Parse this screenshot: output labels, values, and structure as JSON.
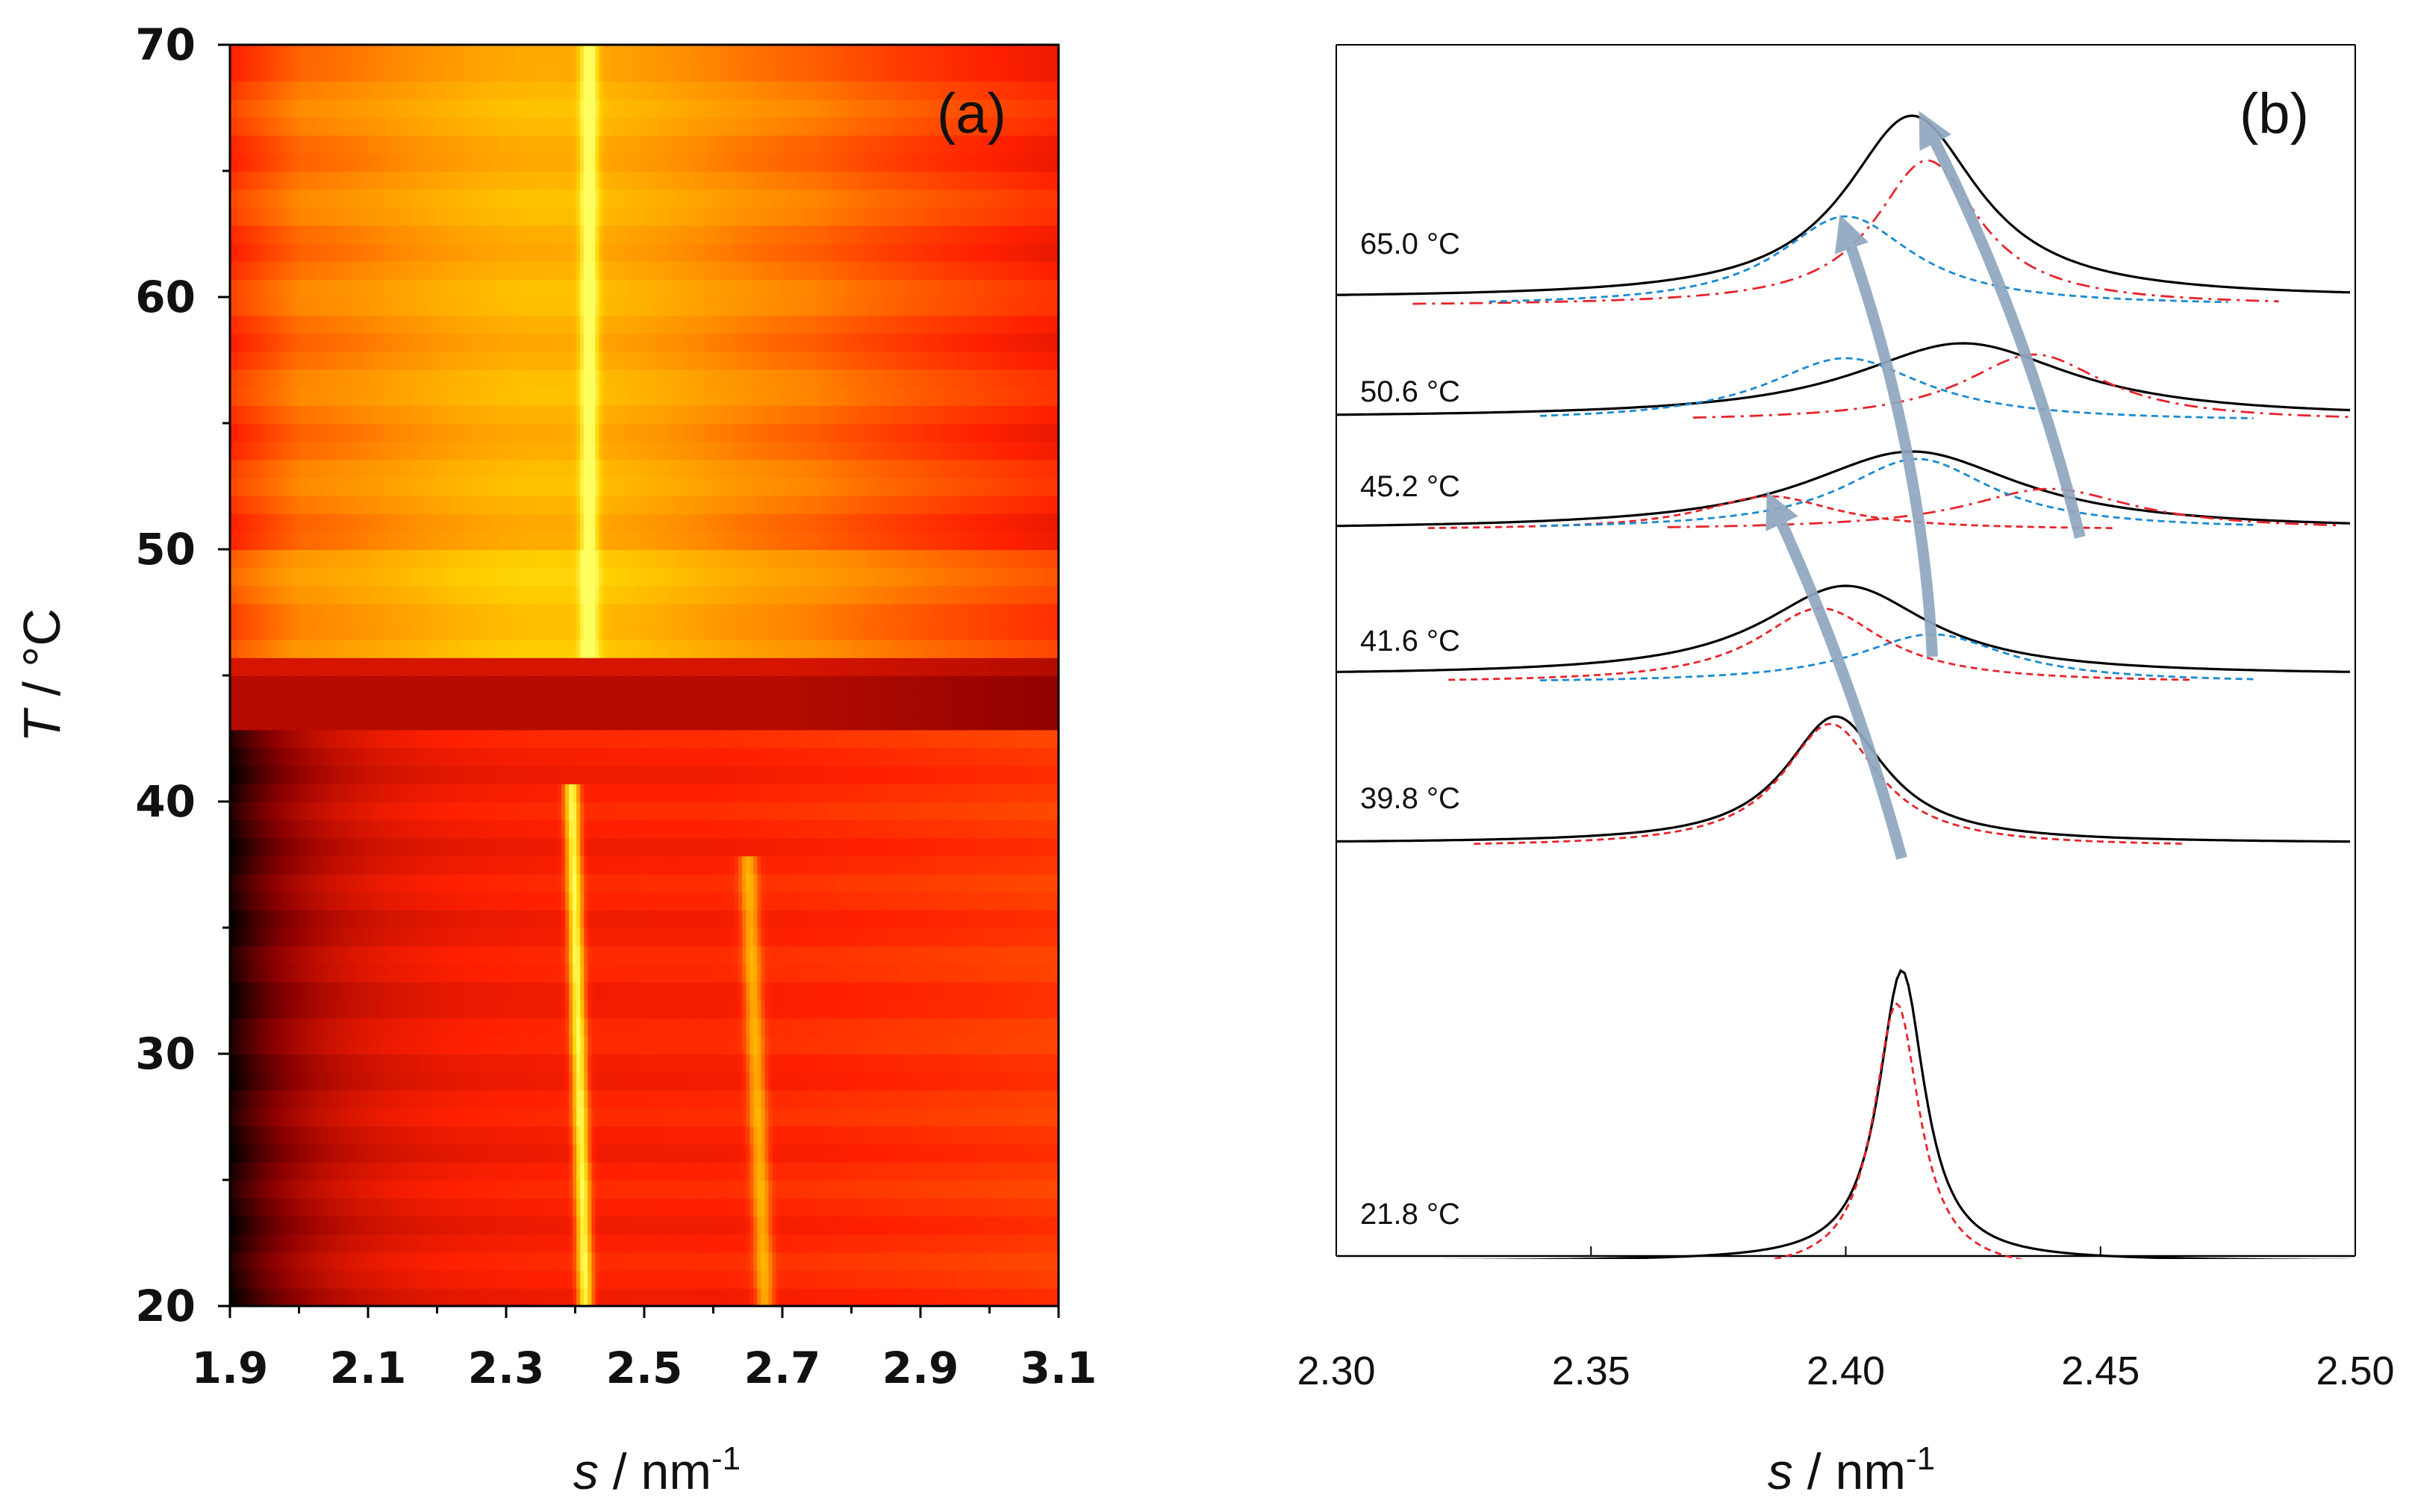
{
  "chart_data": [
    {
      "panel": "(a)",
      "type": "heatmap",
      "xlabel_var": "s",
      "xlabel_unit": " / nm",
      "xlabel_exp": "-1",
      "ylabel_var": "T",
      "ylabel_unit": " / °C",
      "xlim": [
        1.9,
        3.1
      ],
      "ylim": [
        20,
        70
      ],
      "x_tick_values": [
        1.9,
        2.1,
        2.3,
        2.5,
        2.7,
        2.9,
        3.1
      ],
      "x_tick_labels": [
        "1.9",
        "2.1",
        "2.3",
        "2.5",
        "2.7",
        "2.9",
        "3.1"
      ],
      "y_tick_values": [
        20,
        30,
        40,
        50,
        60,
        70
      ],
      "y_tick_labels": [
        "20",
        "30",
        "40",
        "50",
        "60",
        "70"
      ],
      "colormap": [
        "#000000",
        "#8b0000",
        "#ff2000",
        "#ff8c00",
        "#ffd000",
        "#ffff60"
      ],
      "transition_band_T": [
        43,
        46
      ],
      "high_T_peak": {
        "s": 2.42,
        "T_range": [
          46,
          70
        ]
      },
      "low_T_peaks": [
        {
          "s_at_20": 2.415,
          "s_at_top": 2.395,
          "T_range": [
            20,
            40.5
          ]
        },
        {
          "s_at_20": 2.675,
          "s_at_top": 2.65,
          "T_range": [
            20,
            38
          ]
        }
      ]
    },
    {
      "panel": "(b)",
      "type": "line",
      "xlabel_var": "s",
      "xlabel_unit": " / nm",
      "xlabel_exp": "-1",
      "xlim": [
        2.3,
        2.5
      ],
      "x_tick_values": [
        2.3,
        2.35,
        2.4,
        2.45,
        2.5
      ],
      "x_tick_labels": [
        "2.30",
        "2.35",
        "2.40",
        "2.45",
        "2.50"
      ],
      "series_colors": {
        "measured": "#000000",
        "red_fit": "#e8242b",
        "blue_fit": "#1a8ad0",
        "arrow": "#8fa7bf"
      },
      "temperatures": [
        {
          "label": "21.8 °C",
          "measured": {
            "base": 0.0,
            "height": 3.9,
            "center": 2.411,
            "width": 0.0055
          },
          "red": [
            {
              "center": 2.41,
              "width": 0.0055,
              "height": 3.6,
              "base": -0.15,
              "range": [
                2.34,
                2.48
              ],
              "style": "dashed"
            }
          ],
          "blue": []
        },
        {
          "label": "39.8 °C",
          "measured": {
            "base": 0.0,
            "height": 1.7,
            "center": 2.398,
            "width": 0.012
          },
          "red": [
            {
              "center": 2.397,
              "width": 0.0115,
              "height": 1.65,
              "base": -0.05,
              "range": [
                2.327,
                2.466
              ],
              "style": "dashed"
            }
          ],
          "blue": []
        },
        {
          "label": "41.6 °C",
          "measured": {
            "base": 0.0,
            "height": 1.2,
            "center": 2.4,
            "width": 0.02
          },
          "red": [
            {
              "center": 2.395,
              "width": 0.015,
              "height": 1.0,
              "base": -0.1,
              "range": [
                2.322,
                2.468
              ],
              "style": "dashed"
            }
          ],
          "blue": [
            {
              "center": 2.417,
              "width": 0.018,
              "height": 0.65,
              "base": -0.1,
              "range": [
                2.34,
                2.48
              ],
              "style": "dashed"
            }
          ]
        },
        {
          "label": "45.2 °C",
          "measured": {
            "base": 0.0,
            "height": 1.05,
            "center": 2.413,
            "width": 0.026
          },
          "red": [
            {
              "center": 2.385,
              "width": 0.016,
              "height": 0.45,
              "base": 0.0,
              "range": [
                2.318,
                2.453
              ],
              "style": "dashed"
            },
            {
              "center": 2.44,
              "width": 0.02,
              "height": 0.55,
              "base": 0.0,
              "range": [
                2.365,
                2.497
              ],
              "style": "dashdot"
            }
          ],
          "blue": [
            {
              "center": 2.414,
              "width": 0.018,
              "height": 0.95,
              "base": 0.0,
              "range": [
                2.34,
                2.48
              ],
              "style": "dashed"
            }
          ]
        },
        {
          "label": "50.6 °C",
          "measured": {
            "base": 0.0,
            "height": 1.0,
            "center": 2.423,
            "width": 0.026
          },
          "red": [
            {
              "center": 2.437,
              "width": 0.017,
              "height": 0.9,
              "base": -0.05,
              "range": [
                2.37,
                2.5
              ],
              "style": "dashdot"
            }
          ],
          "blue": [
            {
              "center": 2.4,
              "width": 0.019,
              "height": 0.85,
              "base": -0.05,
              "range": [
                2.34,
                2.48
              ],
              "style": "dashed"
            }
          ]
        },
        {
          "label": "65.0 °C",
          "measured": {
            "base": 0.0,
            "height": 2.45,
            "center": 2.413,
            "width": 0.016
          },
          "red": [
            {
              "center": 2.416,
              "width": 0.0125,
              "height": 1.95,
              "base": -0.1,
              "range": [
                2.315,
                2.485
              ],
              "style": "dashdot"
            }
          ],
          "blue": [
            {
              "center": 2.4,
              "width": 0.016,
              "height": 1.2,
              "base": -0.1,
              "range": [
                2.33,
                2.475
              ],
              "style": "dashed"
            }
          ]
        }
      ]
    }
  ]
}
